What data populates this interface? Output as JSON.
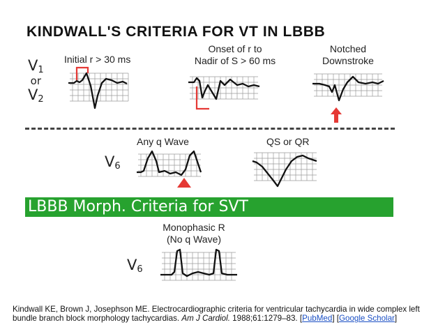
{
  "title": "KINDWALL'S CRITERIA FOR VT IN LBBB",
  "leads": {
    "v1_or_v2": {
      "lead1": "V",
      "sub1": "1",
      "or": "or",
      "lead2": "V",
      "sub2": "2"
    },
    "v6_top": {
      "lead": "V",
      "sub": "6"
    },
    "v6_bottom": {
      "lead": "V",
      "sub": "6"
    }
  },
  "criteria": {
    "initial_r": "Initial r > 30 ms",
    "onset_r_line1": "Onset of r to",
    "onset_r_line2": "Nadir of S > 60 ms",
    "notched_line1": "Notched",
    "notched_line2": "Downstroke",
    "any_q": "Any q Wave",
    "qs_qr": "QS or QR",
    "mono_line1": "Monophasic R",
    "mono_line2": "(No q Wave)"
  },
  "banner": "LBBB Morph. Criteria for SVT",
  "citation": {
    "authors": "Kindwall KE, Brown J, Josephson ME. Electrocardiographic criteria for ventricular tachycardia in wide complex left bundle branch block morphology tachycardias.",
    "journal": "Am J Cardiol.",
    "ref": "1988;61:1279–83.",
    "link1": "PubMed",
    "link2": "Google Scholar"
  },
  "colors": {
    "banner_bg": "#27a22f",
    "marker_red": "#e53935",
    "trace": "#111111",
    "grid": "#9a9a9a",
    "link": "#1a4fc4"
  }
}
